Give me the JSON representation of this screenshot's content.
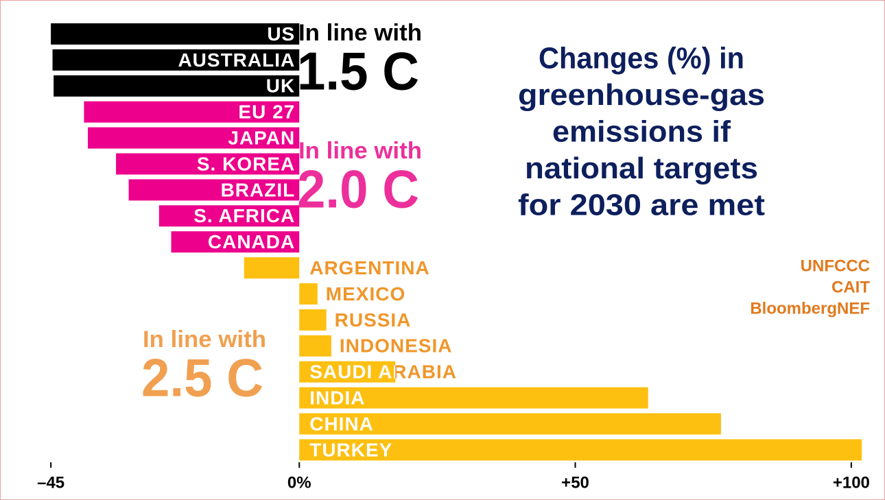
{
  "chart_data": {
    "type": "bar",
    "orientation": "horizontal",
    "title": [
      "Changes (%) in",
      "greenhouse-gas",
      "emissions if",
      "national targets",
      "for 2030 are met"
    ],
    "title_color": "#0d1f5c",
    "sources": [
      "UNFCCC",
      "CAIT",
      "BloombergNEF"
    ],
    "source_color": "#e07a1e",
    "categories": [
      "US",
      "AUSTRALIA",
      "UK",
      "EU 27",
      "JAPAN",
      "S. KOREA",
      "BRAZIL",
      "S. AFRICA",
      "CANADA",
      "ARGENTINA",
      "MEXICO",
      "RUSSIA",
      "INDONESIA",
      "SAUDI ARABIA",
      "INDIA",
      "CHINA",
      "TURKEY"
    ],
    "values": [
      -45,
      -44.7,
      -44.5,
      -39,
      -38.3,
      -33.2,
      -30.9,
      -25.4,
      -23.2,
      -10,
      3.3,
      4.9,
      5.8,
      17.4,
      63.2,
      76.4,
      101.9
    ],
    "colors": [
      "#000000",
      "#000000",
      "#000000",
      "#ec008c",
      "#ec008c",
      "#ec008c",
      "#ec008c",
      "#ec008c",
      "#ec008c",
      "#fdc010",
      "#fdc010",
      "#fdc010",
      "#fdc010",
      "#fdc010",
      "#fdc010",
      "#fdc010",
      "#fdc010"
    ],
    "groups": [
      {
        "text": "In line with",
        "level": "1.5 C",
        "color": "#000000"
      },
      {
        "text": "In line with",
        "level": "2.0 C",
        "color": "#ec2f9a"
      },
      {
        "text": "In line with",
        "level": "2.5 C",
        "color": "#f0a050"
      }
    ],
    "outside_label_color": "#f0962a",
    "xlim": [
      -48,
      103
    ],
    "xticks": [
      {
        "value": -45,
        "label": "–45"
      },
      {
        "value": 0,
        "label": "0%"
      },
      {
        "value": 50,
        "label": "+50"
      },
      {
        "value": 100,
        "label": "+100"
      }
    ]
  }
}
